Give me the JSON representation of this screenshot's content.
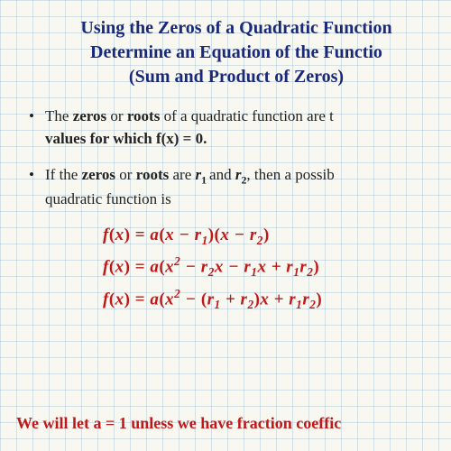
{
  "colors": {
    "title": "#1a2a7a",
    "body": "#222222",
    "formula": "#c01818",
    "footer": "#c01818",
    "grid": "rgba(100,150,200,0.25)",
    "background": "#f8f8f0",
    "highlight": "#ffe600"
  },
  "typography": {
    "title_fontsize": 20,
    "body_fontsize": 17,
    "formula_fontsize": 19,
    "footer_fontsize": 18,
    "font_family": "Georgia, Times New Roman, serif"
  },
  "title": {
    "line1_pre": "Using the ",
    "line1_hl": "Z",
    "line1_post": "eros of a Quadratic Function",
    "line2": "Determine an Equation of the Functio",
    "line3": "(Sum and Product of Zeros)"
  },
  "bullet1": {
    "p1": "The ",
    "b1": "zeros",
    "p2": " or ",
    "b2": "roots",
    "p3": " of a quadratic function are t",
    "p4_b": "values for which f(x) = 0."
  },
  "bullet2": {
    "p1": "If the ",
    "b1": "zeros",
    "p2": " or ",
    "b2": "roots",
    "p3": " are ",
    "r1": "r",
    "s1": "1 ",
    "p4": "and ",
    "r2": "r",
    "s2": "2",
    "p5": ", then a possib",
    "p6": "quadratic function is"
  },
  "formulas": {
    "f1": "f(x) = a(x − r₁)(x − r₂)",
    "f2": "f(x) = a(x² − r₂x − r₁x + r₁r₂)",
    "f3": "f(x) = a(x² − (r₁ + r₂)x + r₁r₂)"
  },
  "footer": "We will let a = 1 unless we have fraction coeffic"
}
